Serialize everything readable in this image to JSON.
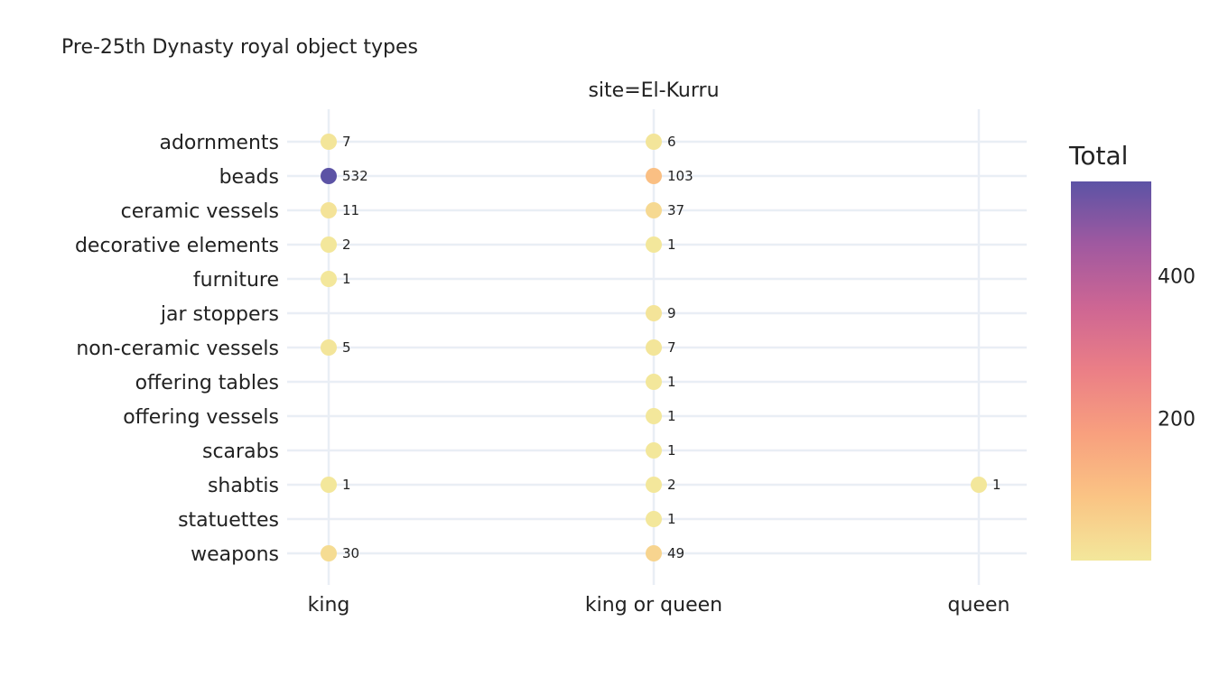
{
  "chart_data": {
    "type": "scatter",
    "title": "Pre-25th Dynasty royal object types",
    "facet_title": "site=El-Kurru",
    "x_categories": [
      "king",
      "king or queen",
      "queen"
    ],
    "y_categories": [
      "adornments",
      "beads",
      "ceramic vessels",
      "decorative elements",
      "furniture",
      "jar stoppers",
      "non-ceramic vessels",
      "offering tables",
      "offering vessels",
      "scarabs",
      "shabtis",
      "statuettes",
      "weapons"
    ],
    "points": [
      {
        "x": "king",
        "y": "adornments",
        "value": 7
      },
      {
        "x": "king or queen",
        "y": "adornments",
        "value": 6
      },
      {
        "x": "king",
        "y": "beads",
        "value": 532
      },
      {
        "x": "king or queen",
        "y": "beads",
        "value": 103
      },
      {
        "x": "king",
        "y": "ceramic vessels",
        "value": 11
      },
      {
        "x": "king or queen",
        "y": "ceramic vessels",
        "value": 37
      },
      {
        "x": "king",
        "y": "decorative elements",
        "value": 2
      },
      {
        "x": "king or queen",
        "y": "decorative elements",
        "value": 1
      },
      {
        "x": "king",
        "y": "furniture",
        "value": 1
      },
      {
        "x": "king or queen",
        "y": "jar stoppers",
        "value": 9
      },
      {
        "x": "king",
        "y": "non-ceramic vessels",
        "value": 5
      },
      {
        "x": "king or queen",
        "y": "non-ceramic vessels",
        "value": 7
      },
      {
        "x": "king or queen",
        "y": "offering tables",
        "value": 1
      },
      {
        "x": "king or queen",
        "y": "offering vessels",
        "value": 1
      },
      {
        "x": "king or queen",
        "y": "scarabs",
        "value": 1
      },
      {
        "x": "king",
        "y": "shabtis",
        "value": 1
      },
      {
        "x": "king or queen",
        "y": "shabtis",
        "value": 2
      },
      {
        "x": "queen",
        "y": "shabtis",
        "value": 1
      },
      {
        "x": "king or queen",
        "y": "statuettes",
        "value": 1
      },
      {
        "x": "king",
        "y": "weapons",
        "value": 30
      },
      {
        "x": "king or queen",
        "y": "weapons",
        "value": 49
      }
    ],
    "colorbar": {
      "title": "Total",
      "range": [
        1,
        532
      ],
      "ticks": [
        200,
        400
      ],
      "colorscale": [
        "#f3e79b",
        "#fac484",
        "#f8a07e",
        "#eb7f86",
        "#ce6693",
        "#a059a0",
        "#5c53a5"
      ]
    },
    "grid": true,
    "legend": "none"
  }
}
